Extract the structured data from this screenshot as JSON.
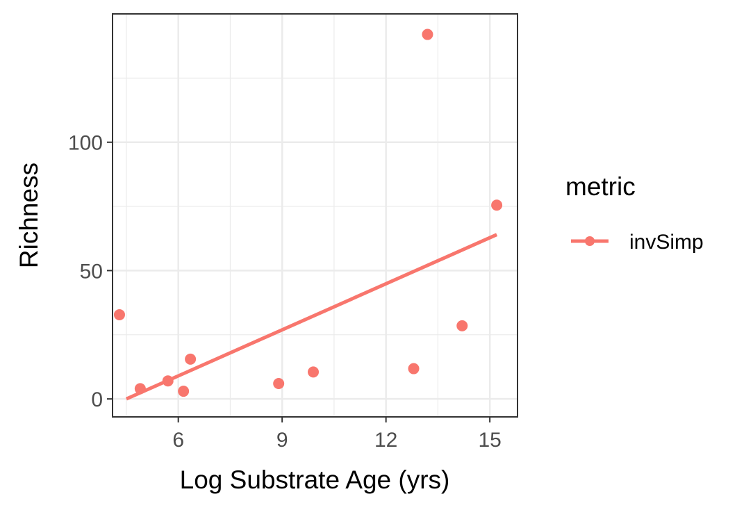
{
  "chart_data": {
    "type": "scatter",
    "title": "",
    "xlabel": "Log Substrate Age (yrs)",
    "ylabel": "Richness",
    "xlim": [
      4.1,
      15.8
    ],
    "ylim": [
      -7,
      150
    ],
    "x_ticks": [
      6,
      9,
      12,
      15
    ],
    "x_tick_labels": [
      "6",
      "9",
      "12",
      "15"
    ],
    "y_ticks": [
      0,
      50,
      100
    ],
    "y_tick_labels": [
      "0",
      "50",
      "100"
    ],
    "x_minor_ticks": [
      4.5,
      7.5,
      10.5,
      13.5
    ],
    "y_minor_ticks": [
      25,
      75,
      125
    ],
    "grid": true,
    "legend": {
      "title": "metric",
      "position": "right",
      "entries": [
        {
          "label": "invSimp",
          "color": "#F8766D"
        }
      ]
    },
    "series": [
      {
        "name": "invSimp",
        "color": "#F8766D",
        "points": [
          {
            "x": 4.3,
            "y": 32.8
          },
          {
            "x": 4.9,
            "y": 4.0
          },
          {
            "x": 5.7,
            "y": 7.0
          },
          {
            "x": 6.15,
            "y": 3.0
          },
          {
            "x": 6.35,
            "y": 15.5
          },
          {
            "x": 8.9,
            "y": 6.0
          },
          {
            "x": 9.9,
            "y": 10.5
          },
          {
            "x": 12.8,
            "y": 11.8
          },
          {
            "x": 13.2,
            "y": 142.0
          },
          {
            "x": 14.2,
            "y": 28.5
          },
          {
            "x": 15.2,
            "y": 75.5
          }
        ],
        "fit_line": {
          "x": [
            4.5,
            15.2
          ],
          "y": [
            0,
            64.0
          ]
        }
      }
    ]
  }
}
